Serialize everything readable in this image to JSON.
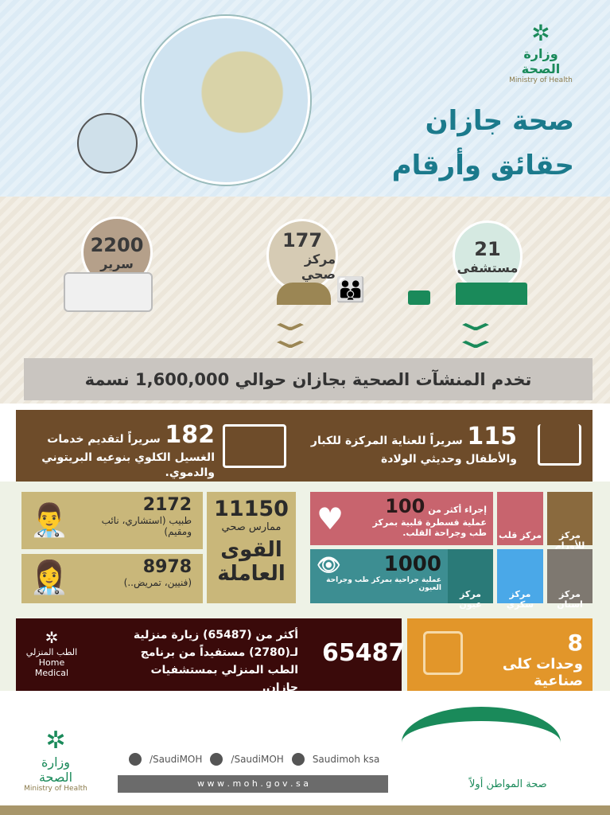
{
  "header": {
    "title_line1": "صحة جازان",
    "title_line2": "حقائق وأرقام",
    "logo_ar": "وزارة الصحة",
    "logo_en": "Ministry of Health"
  },
  "facilities": [
    {
      "value": "21",
      "label": "مستشفى",
      "icon": "hospital-icon"
    },
    {
      "value": "177",
      "label": "مركز صحي",
      "icon": "health-center-icon"
    },
    {
      "value": "2200",
      "label": "سرير",
      "icon": "bed-icon"
    }
  ],
  "population_banner": "تخدم المنشآت الصحية بجازان حوالي 1,600,000 نسمة",
  "icu": {
    "value": "115",
    "text": "سريراً للعناية المركزة للكبار والأطفال وحديثي الولادة"
  },
  "dialysis": {
    "value": "182",
    "text": "سريراً لتقديم خدمات الغسيل الكلوي بنوعيه البريتوني والدموي."
  },
  "workforce": {
    "total": "11150",
    "total_label": "ممارس صحي",
    "title_line1": "القوى",
    "title_line2": "العاملة",
    "doctors": "2172",
    "doctors_label": "طبيب (استشاري، نائب ومقيم)",
    "others": "8978",
    "others_label": "(فنيين، تمريض..)"
  },
  "centers": {
    "oncology": "مركز للأورام",
    "cardiac": "مركز قلب",
    "dental": "مركز اسنان",
    "diabetes": "مركز سكري",
    "eye": "مركز عيون"
  },
  "cardiac_stat": {
    "prefix": "إجراء أكثر من",
    "value": "100",
    "text": "عملية قسطرة قلبية بمركز طب وجراحة القلب."
  },
  "eye_stat": {
    "value": "1000",
    "text": "عملية جراحية بمركز طب وجراحة العيون"
  },
  "kidney_units": {
    "value": "8",
    "text": "وحدات كلى صناعية"
  },
  "home_medical": {
    "value": "65487",
    "text": "أكثر من (65487) زيارة منزلية لـ(2780) مستفيداً من برنامج الطب المنزلي بمستشفيات جازان.",
    "logo_ar": "الطب المنزلي",
    "logo_en": "Home Medical"
  },
  "footer": {
    "twitter": "/SaudiMOH",
    "facebook": "/SaudiMOH",
    "youtube": "Saudimoh ksa",
    "website": "w w w . m o h . g o v . s a",
    "logo_ar": "وزارة الصحة",
    "logo_en": "Ministry of Health",
    "slogan": "صحة المواطن أولاً"
  },
  "colors": {
    "teal": "#1b7a8c",
    "green": "#1a8a5a",
    "brown": "#6e4c2a",
    "tan": "#c9b77a",
    "heart": "#c8646e",
    "eye": "#3d8e92",
    "diabetes": "#4aa8e8",
    "dental": "#7e7870",
    "orange": "#e2962a",
    "maroon": "#3a0a0a"
  }
}
